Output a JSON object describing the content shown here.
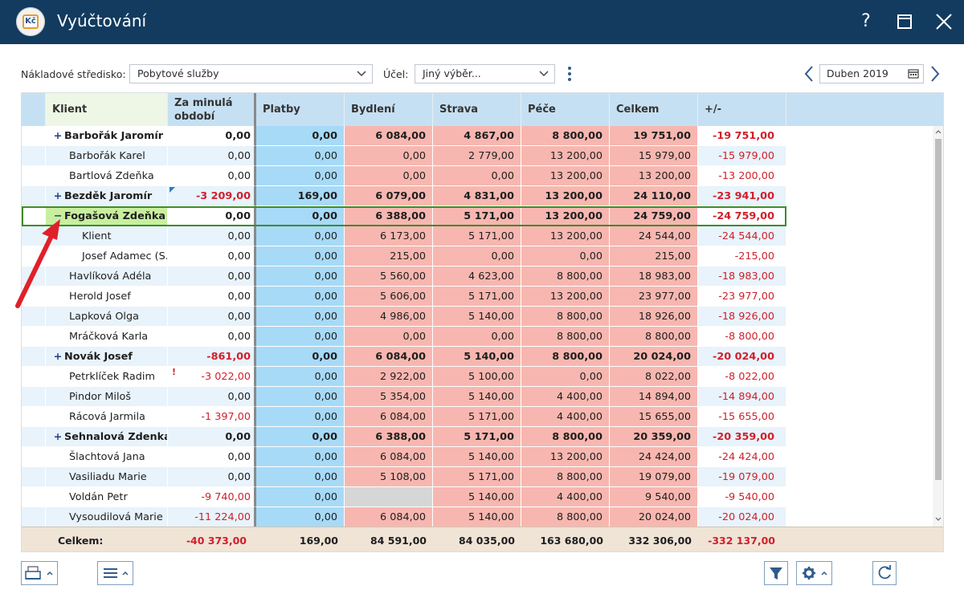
{
  "window": {
    "title": "Vyúčtování",
    "app_icon_label": "Kč",
    "help_label": "?"
  },
  "toolbar": {
    "cost_center_label": "Nákladové středisko:",
    "cost_center_value": "Pobytové služby",
    "purpose_label": "Účel:",
    "purpose_value": "Jiný výběr...",
    "period_value": "Duben 2019"
  },
  "grid": {
    "columns": [
      {
        "key": "client",
        "label": "Klient"
      },
      {
        "key": "prev",
        "label": "Za minulá období"
      },
      {
        "key": "payments",
        "label": "Platby"
      },
      {
        "key": "housing",
        "label": "Bydlení"
      },
      {
        "key": "food",
        "label": "Strava"
      },
      {
        "key": "care",
        "label": "Péče"
      },
      {
        "key": "total",
        "label": "Celkem"
      },
      {
        "key": "diff",
        "label": "+/-"
      }
    ],
    "rows": [
      {
        "name": "Barbořák Jaromír",
        "expander": "+",
        "bold": true,
        "prev": "0,00",
        "payments": "0,00",
        "housing": "6 084,00",
        "food": "4 867,00",
        "care": "8 800,00",
        "total": "19 751,00",
        "diff": "-19 751,00"
      },
      {
        "name": "Barbořák Karel",
        "prev": "0,00",
        "payments": "0,00",
        "housing": "0,00",
        "food": "2 779,00",
        "care": "13 200,00",
        "total": "15 979,00",
        "diff": "-15 979,00"
      },
      {
        "name": "Bartlová Zdeňka",
        "prev": "0,00",
        "payments": "0,00",
        "housing": "0,00",
        "food": "0,00",
        "care": "13 200,00",
        "total": "13 200,00",
        "diff": "-13 200,00"
      },
      {
        "name": "Bezděk Jaromír",
        "expander": "+",
        "bold": true,
        "prev": "-3 209,00",
        "payments": "169,00",
        "housing": "6 079,00",
        "food": "4 831,00",
        "care": "13 200,00",
        "total": "24 110,00",
        "diff": "-23 941,00",
        "corner_mark": true
      },
      {
        "name": "Fogašová Zdeňka",
        "expander": "−",
        "bold": true,
        "selected": true,
        "prev": "0,00",
        "payments": "0,00",
        "housing": "6 388,00",
        "food": "5 171,00",
        "care": "13 200,00",
        "total": "24 759,00",
        "diff": "-24 759,00"
      },
      {
        "name": "Klient",
        "child": true,
        "prev": "0,00",
        "payments": "0,00",
        "housing": "6 173,00",
        "food": "5 171,00",
        "care": "13 200,00",
        "total": "24 544,00",
        "diff": "-24 544,00"
      },
      {
        "name": "Josef Adamec (S...",
        "child": true,
        "prev": "0,00",
        "payments": "0,00",
        "housing": "215,00",
        "food": "0,00",
        "care": "0,00",
        "total": "215,00",
        "diff": "-215,00"
      },
      {
        "name": "Havlíková Adéla",
        "prev": "0,00",
        "payments": "0,00",
        "housing": "5 560,00",
        "food": "4 623,00",
        "care": "8 800,00",
        "total": "18 983,00",
        "diff": "-18 983,00"
      },
      {
        "name": "Herold Josef",
        "prev": "0,00",
        "payments": "0,00",
        "housing": "5 606,00",
        "food": "5 171,00",
        "care": "13 200,00",
        "total": "23 977,00",
        "diff": "-23 977,00"
      },
      {
        "name": "Lapková Olga",
        "prev": "0,00",
        "payments": "0,00",
        "housing": "4 986,00",
        "food": "5 140,00",
        "care": "8 800,00",
        "total": "18 926,00",
        "diff": "-18 926,00"
      },
      {
        "name": "Mráčková Karla",
        "prev": "0,00",
        "payments": "0,00",
        "housing": "0,00",
        "food": "0,00",
        "care": "8 800,00",
        "total": "8 800,00",
        "diff": "-8 800,00"
      },
      {
        "name": "Novák Josef",
        "expander": "+",
        "bold": true,
        "prev": "-861,00",
        "payments": "0,00",
        "housing": "6 084,00",
        "food": "5 140,00",
        "care": "8 800,00",
        "total": "20 024,00",
        "diff": "-20 024,00"
      },
      {
        "name": "Petrklíček Radim",
        "prev": "-3 022,00",
        "payments": "0,00",
        "housing": "2 922,00",
        "food": "5 100,00",
        "care": "0,00",
        "total": "8 022,00",
        "diff": "-8 022,00",
        "warning": true
      },
      {
        "name": "Pindor Miloš",
        "prev": "0,00",
        "payments": "0,00",
        "housing": "5 354,00",
        "food": "5 140,00",
        "care": "4 400,00",
        "total": "14 894,00",
        "diff": "-14 894,00"
      },
      {
        "name": "Rácová Jarmila",
        "prev": "-1 397,00",
        "payments": "0,00",
        "housing": "6 084,00",
        "food": "5 171,00",
        "care": "4 400,00",
        "total": "15 655,00",
        "diff": "-15 655,00"
      },
      {
        "name": "Sehnalová Zdenka",
        "expander": "+",
        "bold": true,
        "prev": "0,00",
        "payments": "0,00",
        "housing": "6 388,00",
        "food": "5 171,00",
        "care": "8 800,00",
        "total": "20 359,00",
        "diff": "-20 359,00"
      },
      {
        "name": "Šlachtová Jana",
        "prev": "0,00",
        "payments": "0,00",
        "housing": "6 084,00",
        "food": "5 140,00",
        "care": "13 200,00",
        "total": "24 424,00",
        "diff": "-24 424,00"
      },
      {
        "name": "Vasiliadu Marie",
        "prev": "0,00",
        "payments": "0,00",
        "housing": "5 108,00",
        "food": "5 171,00",
        "care": "8 800,00",
        "total": "19 079,00",
        "diff": "-19 079,00"
      },
      {
        "name": "Voldán Petr",
        "prev": "-9 740,00",
        "payments": "0,00",
        "housing": "",
        "housing_empty": true,
        "food": "5 140,00",
        "care": "4 400,00",
        "total": "9 540,00",
        "diff": "-9 540,00"
      },
      {
        "name": "Vysoudilová Marie",
        "prev": "-11 224,00",
        "payments": "0,00",
        "housing": "6 084,00",
        "food": "5 140,00",
        "care": "8 800,00",
        "total": "20 024,00",
        "diff": "-20 024,00"
      }
    ],
    "footer": {
      "label": "Celkem:",
      "prev": "-40 373,00",
      "payments": "169,00",
      "housing": "84 591,00",
      "food": "84 035,00",
      "care": "163 680,00",
      "total": "332 306,00",
      "diff": "-332 137,00"
    }
  },
  "colors": {
    "titlebar": "#123b5f",
    "header": "#c6e0f3",
    "payments_col": "#a7daf7",
    "cost_cols": "#f7b7b0",
    "negative": "#d11f2a",
    "selection_border": "#3c8c28",
    "selection_name_bg": "#c8ef9e",
    "footer_bg": "#efe4d6",
    "annotation_arrow": "#e0202a"
  },
  "icons": {
    "print": "printer-icon",
    "menu": "hamburger-icon",
    "filter": "filter-icon",
    "settings": "gear-icon",
    "refresh": "refresh-icon",
    "calendar": "calendar-icon"
  }
}
